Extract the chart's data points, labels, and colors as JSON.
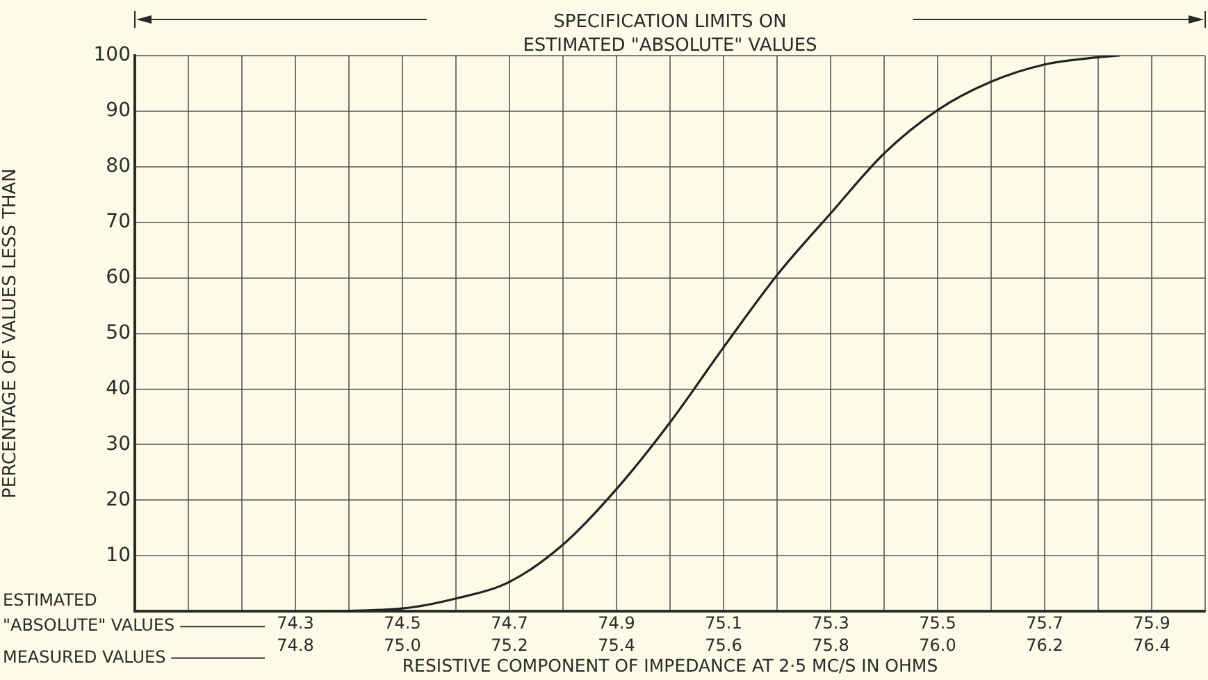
{
  "chart_data": {
    "type": "line",
    "title": "SPECIFICATION LIMITS ON ESTIMATED \"ABSOLUTE\" VALUES",
    "xlabel": "RESISTIVE COMPONENT OF IMPEDANCE AT 2·5 MC/S IN OHMS",
    "ylabel": "PERCENTAGE OF VALUES LESS THAN",
    "x": [
      74.35,
      74.5,
      74.6,
      74.7,
      74.8,
      74.9,
      75.0,
      75.1,
      75.2,
      75.3,
      75.4,
      75.5,
      75.6,
      75.7,
      75.8,
      75.84
    ],
    "series": [
      {
        "color": "#222222",
        "values": [
          0,
          0.5,
          2.3,
          5.3,
          12,
          22,
          34,
          47.5,
          60.5,
          71.6,
          82.4,
          90.2,
          95.3,
          98.4,
          99.7,
          100
        ]
      }
    ],
    "xlim": [
      74.0,
      76.0
    ],
    "xticks": [
      74.3,
      74.5,
      74.7,
      74.9,
      75.1,
      75.3,
      75.5,
      75.7,
      75.9
    ],
    "x2lim": [
      74.5,
      76.5
    ],
    "x2ticks": [
      74.8,
      {
        "value": 75.0,
        "label": "75.0"
      },
      75.2,
      75.4,
      75.6,
      75.8,
      {
        "value": 76.0,
        "label": "76.0"
      },
      76.2,
      76.4
    ],
    "ylim": [
      0,
      100
    ],
    "yticks": [
      {
        "value": 0,
        "label": null
      },
      10,
      20,
      30,
      40,
      50,
      60,
      70,
      80,
      90,
      100
    ],
    "annotations": [
      "ESTIMATED \"ABSOLUTE\" VALUES",
      "MEASURED VALUES"
    ],
    "grid": true,
    "legend": false,
    "marker": "none",
    "line_style": "solid"
  }
}
